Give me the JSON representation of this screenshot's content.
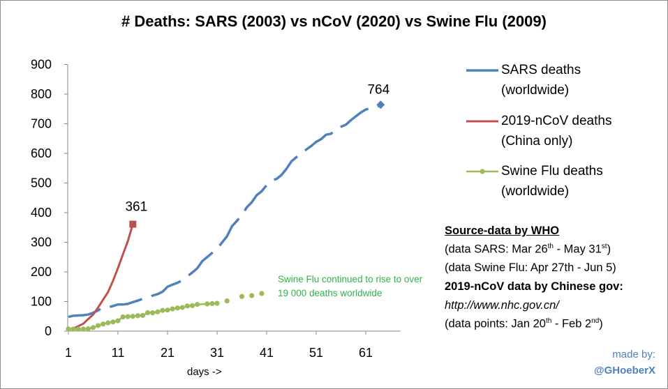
{
  "chart_data": {
    "type": "line",
    "title": "# Deaths: SARS (2003) vs nCoV (2020) vs Swine Flu (2009)",
    "xlabel": "days ->",
    "ylabel": "",
    "xlim": [
      1,
      68
    ],
    "ylim": [
      0,
      900
    ],
    "x_ticks": [
      1,
      11,
      21,
      31,
      41,
      51,
      61
    ],
    "y_ticks": [
      0,
      100,
      200,
      300,
      400,
      500,
      600,
      700,
      800,
      900
    ],
    "grid": false,
    "legend_position": "right",
    "series": [
      {
        "name": "SARS deaths (worldwide)",
        "legend_lines": [
          "SARS deaths",
          "(worldwide)"
        ],
        "color": "#4f81bd",
        "style": "dashed",
        "points": [
          [
            1,
            48
          ],
          [
            2,
            52
          ],
          [
            3,
            53
          ],
          [
            4,
            54
          ],
          [
            5,
            56
          ],
          [
            6,
            62
          ],
          [
            7,
            70
          ],
          [
            8,
            80
          ],
          [
            9,
            80
          ],
          [
            10,
            85
          ],
          [
            11,
            90
          ],
          [
            12,
            90
          ],
          [
            13,
            92
          ],
          [
            14,
            98
          ],
          [
            15,
            103
          ],
          [
            16,
            109
          ],
          [
            17,
            113
          ],
          [
            18,
            120
          ],
          [
            19,
            125
          ],
          [
            20,
            133
          ],
          [
            21,
            150
          ],
          [
            22,
            157
          ],
          [
            23,
            163
          ],
          [
            24,
            172
          ],
          [
            25,
            185
          ],
          [
            26,
            198
          ],
          [
            27,
            212
          ],
          [
            28,
            236
          ],
          [
            29,
            250
          ],
          [
            30,
            264
          ],
          [
            31,
            278
          ],
          [
            32,
            299
          ],
          [
            33,
            320
          ],
          [
            34,
            354
          ],
          [
            35,
            372
          ],
          [
            36,
            392
          ],
          [
            37,
            418
          ],
          [
            38,
            435
          ],
          [
            39,
            459
          ],
          [
            40,
            472
          ],
          [
            41,
            493
          ],
          [
            42,
            508
          ],
          [
            43,
            514
          ],
          [
            44,
            527
          ],
          [
            45,
            548
          ],
          [
            46,
            573
          ],
          [
            47,
            587
          ],
          [
            48,
            601
          ],
          [
            49,
            613
          ],
          [
            50,
            625
          ],
          [
            51,
            639
          ],
          [
            52,
            648
          ],
          [
            53,
            663
          ],
          [
            54,
            666
          ],
          [
            55,
            682
          ],
          [
            56,
            690
          ],
          [
            57,
            697
          ],
          [
            58,
            712
          ],
          [
            59,
            725
          ],
          [
            60,
            738
          ],
          [
            61,
            748
          ],
          [
            62,
            752
          ],
          [
            63,
            754
          ],
          [
            64,
            764
          ]
        ],
        "end_label": "764"
      },
      {
        "name": "2019-nCoV deaths (China only)",
        "legend_lines": [
          "2019-nCoV deaths",
          "(China only)"
        ],
        "color": "#c0504d",
        "style": "solid",
        "points": [
          [
            1,
            6
          ],
          [
            2,
            9
          ],
          [
            3,
            17
          ],
          [
            4,
            25
          ],
          [
            5,
            41
          ],
          [
            6,
            56
          ],
          [
            7,
            80
          ],
          [
            8,
            106
          ],
          [
            9,
            132
          ],
          [
            10,
            170
          ],
          [
            11,
            213
          ],
          [
            12,
            259
          ],
          [
            13,
            304
          ],
          [
            14,
            361
          ]
        ],
        "end_label": "361"
      },
      {
        "name": "Swine Flu deaths (worldwide)",
        "legend_lines": [
          "Swine Flu deaths",
          "(worldwide)"
        ],
        "color": "#9bbb59",
        "style": "solid-markers",
        "points": [
          [
            1,
            7
          ],
          [
            2,
            7
          ],
          [
            3,
            7
          ],
          [
            4,
            7
          ],
          [
            5,
            8
          ],
          [
            6,
            12
          ],
          [
            7,
            19
          ],
          [
            8,
            24
          ],
          [
            9,
            28
          ],
          [
            10,
            31
          ],
          [
            11,
            35
          ],
          [
            12,
            48
          ],
          [
            13,
            49
          ],
          [
            14,
            50
          ],
          [
            15,
            52
          ],
          [
            16,
            53
          ],
          [
            17,
            62
          ],
          [
            18,
            62
          ],
          [
            19,
            65
          ],
          [
            20,
            70
          ],
          [
            21,
            71
          ],
          [
            22,
            75
          ],
          [
            23,
            78
          ],
          [
            24,
            80
          ],
          [
            25,
            85
          ],
          [
            26,
            86
          ],
          [
            27,
            90
          ],
          [
            29,
            92
          ],
          [
            30,
            93
          ],
          [
            31,
            94
          ],
          [
            33,
            102
          ],
          [
            36,
            117
          ],
          [
            38,
            120
          ],
          [
            40,
            127
          ]
        ]
      }
    ],
    "annotation": "Swine Flu continued to rise to over 19 000 deaths worldwide"
  },
  "source": {
    "heading": "Source-data by WHO",
    "sars_prefix": "(data SARS: Mar 26",
    "sars_sup1": "th",
    "sars_mid": " - May 31",
    "sars_sup2": "st",
    "sars_suffix": ")",
    "swine": "(data Swine Flu: Apr 27th - Jun 5)",
    "gov": "2019-nCoV data by Chinese gov:",
    "url": "http://www.nhc.gov.cn/",
    "points_prefix": "(data points: Jan 20",
    "points_sup1": "th",
    "points_mid": " - Feb 2",
    "points_sup2": "nd",
    "points_suffix": ")"
  },
  "credit": {
    "made_by": "made by:",
    "handle": "@GHoeberX"
  }
}
